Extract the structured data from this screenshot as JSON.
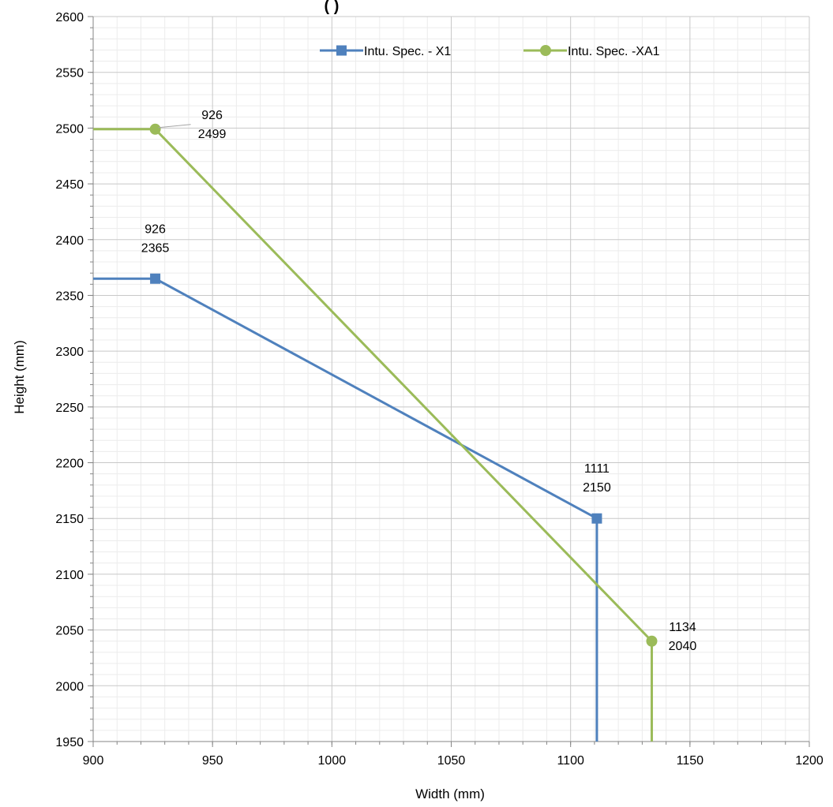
{
  "chart_data": {
    "type": "line",
    "title": "(                         )",
    "xlabel": "Width (mm)",
    "ylabel": "Height (mm)",
    "xlim": [
      900,
      1200
    ],
    "ylim": [
      1950,
      2600
    ],
    "x_ticks": [
      "900",
      "950",
      "1000",
      "1050",
      "1100",
      "1150",
      "1200"
    ],
    "y_ticks": [
      "1950",
      "2000",
      "2050",
      "2100",
      "2150",
      "2200",
      "2250",
      "2300",
      "2350",
      "2400",
      "2450",
      "2500",
      "2550",
      "2600"
    ],
    "grid": true,
    "legend_position": "top-right",
    "series": [
      {
        "name": "Intu. Spec. - X1",
        "color": "#4f81bd",
        "marker": "square",
        "points": [
          [
            900,
            2365
          ],
          [
            926,
            2365
          ],
          [
            1111,
            2150
          ],
          [
            1111,
            1950
          ]
        ],
        "marker_points": [
          [
            926,
            2365
          ],
          [
            1111,
            2150
          ]
        ],
        "labels": [
          {
            "x": 926,
            "y": 2365,
            "line1": "926",
            "line2": "2365"
          },
          {
            "x": 1111,
            "y": 2150,
            "line1": "1111",
            "line2": "2150"
          }
        ]
      },
      {
        "name": "Intu. Spec. -XA1",
        "color": "#9bbb59",
        "marker": "circle",
        "points": [
          [
            900,
            2499
          ],
          [
            926,
            2499
          ],
          [
            1134,
            2040
          ],
          [
            1134,
            1950
          ]
        ],
        "marker_points": [
          [
            926,
            2499
          ],
          [
            1134,
            2040
          ]
        ],
        "labels": [
          {
            "x": 926,
            "y": 2499,
            "line1": "926",
            "line2": "2499"
          },
          {
            "x": 1134,
            "y": 2040,
            "line1": "1134",
            "line2": "2040"
          }
        ]
      }
    ]
  }
}
